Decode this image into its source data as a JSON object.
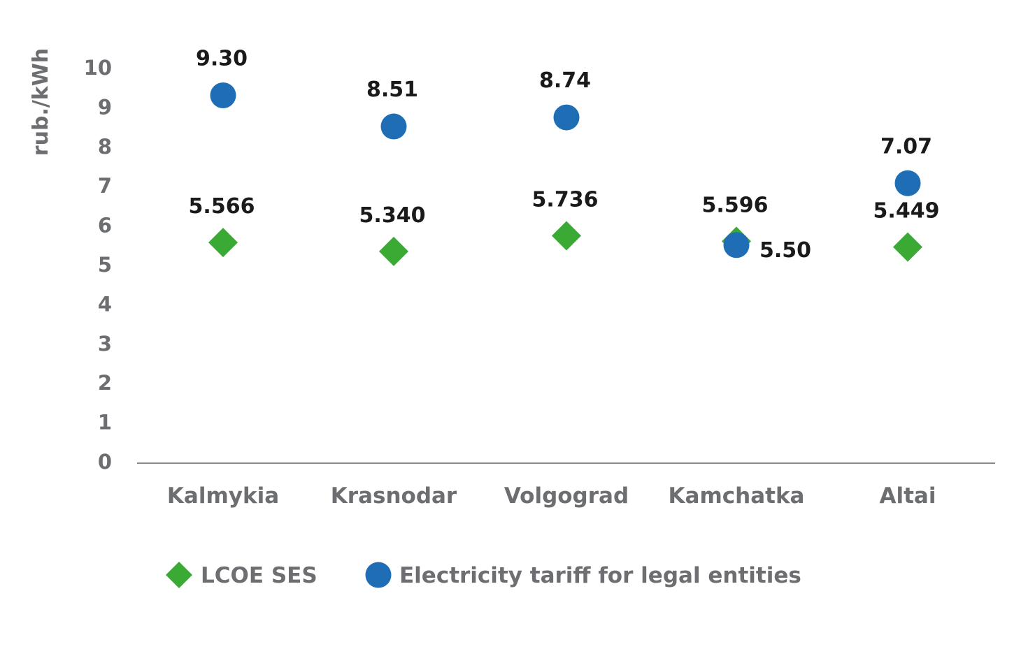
{
  "chart_data": {
    "type": "scatter",
    "ylabel": "rub./kWh",
    "xlabel": "",
    "ylim": [
      0,
      10
    ],
    "yticks": [
      0,
      1,
      2,
      3,
      4,
      5,
      6,
      7,
      8,
      9,
      10
    ],
    "grid": false,
    "legend_position": "bottom-left",
    "categories": [
      "Kalmykia",
      "Krasnodar",
      "Volgograd",
      "Kamchatka",
      "Altai"
    ],
    "series": [
      {
        "name": "LCOE SES",
        "marker": "diamond",
        "color": "#3aaa35",
        "values": [
          5.566,
          5.34,
          5.736,
          5.596,
          5.449
        ],
        "labels": [
          "5.566",
          "5.340",
          "5.736",
          "5.596",
          "5.449"
        ]
      },
      {
        "name": "Electricity tariff for legal entities",
        "marker": "circle",
        "color": "#1f6db5",
        "values": [
          9.3,
          8.51,
          8.74,
          5.5,
          7.07
        ],
        "labels": [
          "9.30",
          "8.51",
          "8.74",
          "5.50",
          "7.07"
        ]
      }
    ]
  }
}
